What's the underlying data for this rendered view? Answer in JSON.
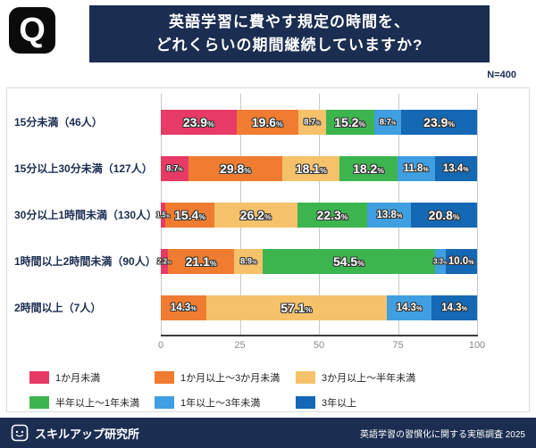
{
  "header": {
    "logo": "Q",
    "title_line1": "英語学習に費やす規定の時間を、",
    "title_line2": "どれくらいの期間継続していますか?",
    "sample_size": "N=400"
  },
  "chart_data": {
    "type": "bar",
    "stacked": true,
    "orientation": "horizontal",
    "title": "英語学習に費やす規定の時間を、どれくらいの期間継続していますか?",
    "categories": [
      "15分未満（46人）",
      "15分以上30分未満（127人）",
      "30分以上1時間未満（130人）",
      "1時間以上2時間未満（90人）",
      "2時間以上（7人）"
    ],
    "series": [
      {
        "name": "1か月未満",
        "color": "#e83a66",
        "values": [
          23.9,
          8.7,
          1.5,
          2.2,
          0
        ]
      },
      {
        "name": "1か月以上〜3か月未満",
        "color": "#ef7c31",
        "values": [
          19.6,
          29.8,
          15.4,
          21.1,
          14.3
        ]
      },
      {
        "name": "3か月以上〜半年未満",
        "color": "#f5c26b",
        "values": [
          8.7,
          18.1,
          26.2,
          8.9,
          57.1
        ]
      },
      {
        "name": "半年以上〜1年未満",
        "color": "#3cb54f",
        "values": [
          15.2,
          18.2,
          22.3,
          54.5,
          0
        ]
      },
      {
        "name": "1年以上〜3年未満",
        "color": "#409fe1",
        "values": [
          8.7,
          11.8,
          13.8,
          3.3,
          14.3
        ]
      },
      {
        "name": "3年以上",
        "color": "#1568b3",
        "values": [
          23.9,
          13.4,
          20.8,
          10.0,
          14.3
        ]
      }
    ],
    "x_ticks": [
      0,
      25,
      50,
      75,
      100
    ],
    "xlim": [
      0,
      100
    ],
    "grid": true,
    "legend_position": "bottom"
  },
  "footer": {
    "brand": "スキルアップ研究所",
    "note": "英語学習の習慣化に関する実態調査 2025"
  }
}
